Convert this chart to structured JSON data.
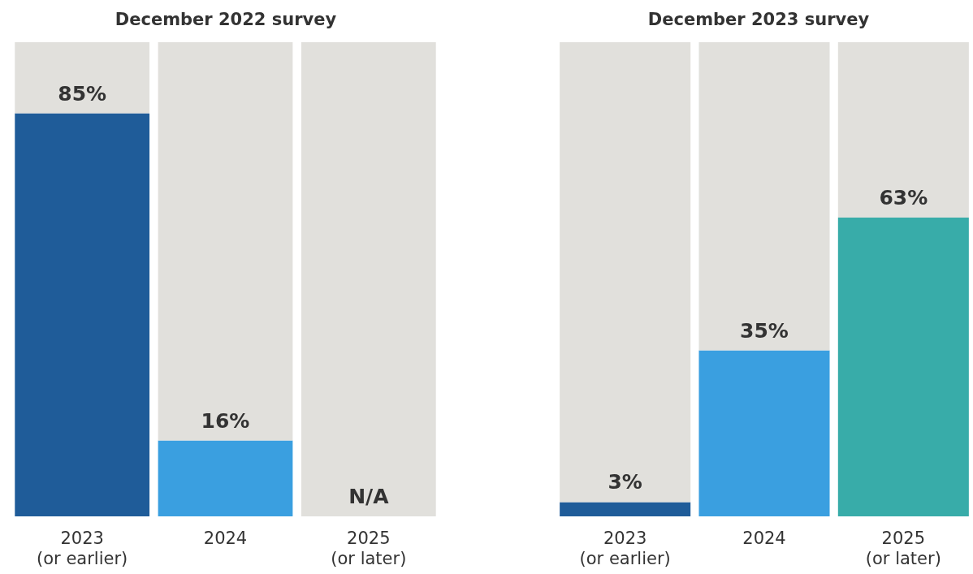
{
  "chart_data": [
    {
      "type": "bar",
      "title": "December 2022 survey",
      "categories": [
        "2023\n(or earlier)",
        "2024",
        "2025\n(or later)"
      ],
      "series": [
        {
          "colors": [
            "#1f5c99",
            "#3a9fe0",
            "#38aca9"
          ],
          "values": [
            85,
            16,
            null
          ],
          "value_labels": [
            "85%",
            "16%",
            "N/A"
          ]
        },
        {
          "color": "#e1e0dc",
          "values": [
            15,
            84,
            100
          ]
        }
      ],
      "stacked": true,
      "ylim": [
        0,
        100
      ],
      "tick_labels": "x"
    },
    {
      "type": "bar",
      "title": "December 2023 survey",
      "categories": [
        "2023\n(or earlier)",
        "2024",
        "2025\n(or later)"
      ],
      "series": [
        {
          "colors": [
            "#1f5c99",
            "#3a9fe0",
            "#38aca9"
          ],
          "values": [
            3,
            35,
            63
          ],
          "value_labels": [
            "3%",
            "35%",
            "63%"
          ]
        },
        {
          "color": "#e1e0dc",
          "values": [
            97,
            65,
            37
          ]
        }
      ],
      "stacked": true,
      "ylim": [
        0,
        100
      ],
      "tick_labels": "x"
    }
  ]
}
